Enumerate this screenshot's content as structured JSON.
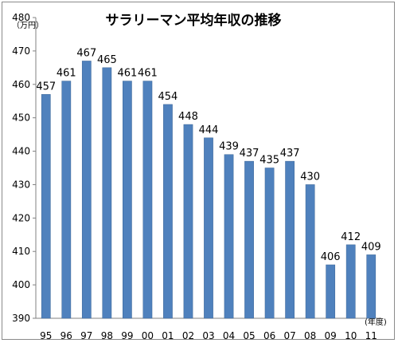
{
  "chart_data": {
    "type": "bar",
    "title": "サラリーマン平均年収の推移",
    "y_unit_label": "（万円）",
    "x_unit_label": "(年度)",
    "categories": [
      "95",
      "96",
      "97",
      "98",
      "99",
      "00",
      "01",
      "02",
      "03",
      "04",
      "05",
      "06",
      "07",
      "08",
      "09",
      "10",
      "11"
    ],
    "values": [
      457,
      461,
      467,
      465,
      461,
      461,
      454,
      448,
      444,
      439,
      437,
      435,
      437,
      430,
      406,
      412,
      409
    ],
    "ylim": [
      390,
      480
    ],
    "y_ticks": [
      390,
      400,
      410,
      420,
      430,
      440,
      450,
      460,
      470,
      480
    ],
    "grid": false,
    "data_labels": true,
    "colors": {
      "bar": "#4f81bd",
      "bar_edge": "#3c6696",
      "axis": "#808080"
    }
  }
}
